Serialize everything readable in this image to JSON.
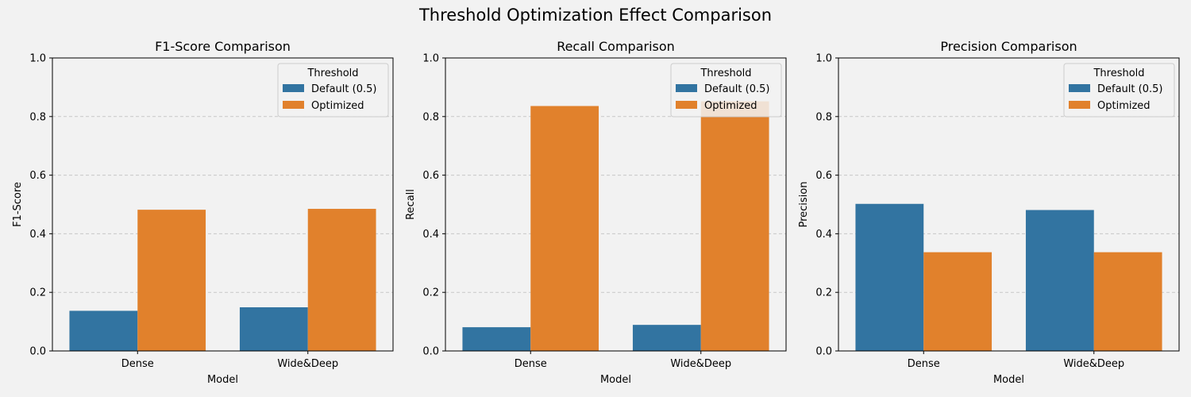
{
  "figure": {
    "title": "Threshold Optimization Effect Comparison",
    "background": "#f2f2f2"
  },
  "colors": {
    "Default (0.5)": "#3274a1",
    "Optimized": "#e1812c",
    "grid": "#c8c8c8"
  },
  "chart_data": [
    {
      "type": "bar",
      "title": "F1-Score Comparison",
      "xlabel": "Model",
      "ylabel": "F1-Score",
      "ylim": [
        0,
        1.0
      ],
      "yticks": [
        "0.0",
        "0.2",
        "0.4",
        "0.6",
        "0.8",
        "1.0"
      ],
      "grid": "y-dashed",
      "categories": [
        "Dense",
        "Wide&Deep"
      ],
      "legend": {
        "title": "Threshold",
        "position": "top-right"
      },
      "series": [
        {
          "name": "Default (0.5)",
          "values": [
            0.137,
            0.149
          ]
        },
        {
          "name": "Optimized",
          "values": [
            0.482,
            0.485
          ]
        }
      ]
    },
    {
      "type": "bar",
      "title": "Recall Comparison",
      "xlabel": "Model",
      "ylabel": "Recall",
      "ylim": [
        0,
        1.0
      ],
      "yticks": [
        "0.0",
        "0.2",
        "0.4",
        "0.6",
        "0.8",
        "1.0"
      ],
      "grid": "y-dashed",
      "categories": [
        "Dense",
        "Wide&Deep"
      ],
      "legend": {
        "title": "Threshold",
        "position": "top-right"
      },
      "series": [
        {
          "name": "Default (0.5)",
          "values": [
            0.081,
            0.089
          ]
        },
        {
          "name": "Optimized",
          "values": [
            0.836,
            0.852
          ]
        }
      ]
    },
    {
      "type": "bar",
      "title": "Precision Comparison",
      "xlabel": "Model",
      "ylabel": "Precision",
      "ylim": [
        0,
        1.0
      ],
      "yticks": [
        "0.0",
        "0.2",
        "0.4",
        "0.6",
        "0.8",
        "1.0"
      ],
      "grid": "y-dashed",
      "categories": [
        "Dense",
        "Wide&Deep"
      ],
      "legend": {
        "title": "Threshold",
        "position": "top-right"
      },
      "series": [
        {
          "name": "Default (0.5)",
          "values": [
            0.502,
            0.481
          ]
        },
        {
          "name": "Optimized",
          "values": [
            0.337,
            0.337
          ]
        }
      ]
    }
  ]
}
